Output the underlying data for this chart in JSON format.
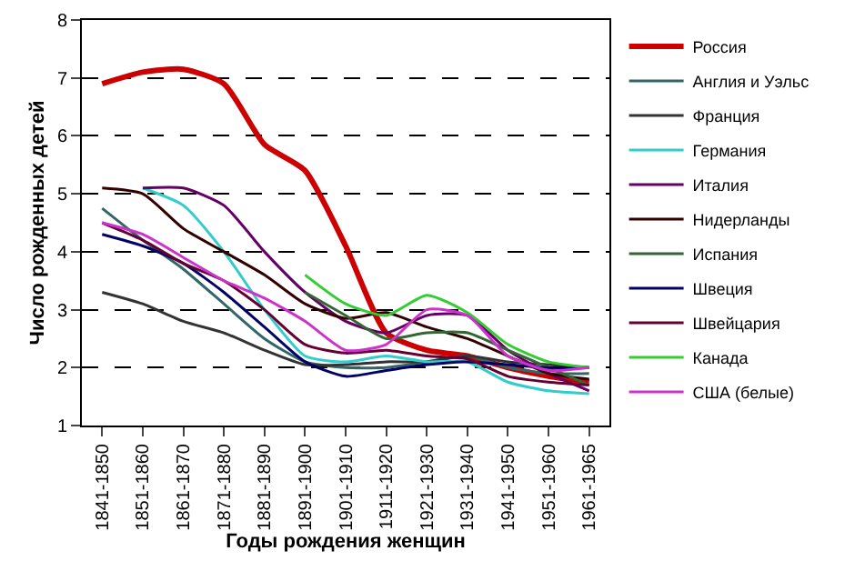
{
  "chart_data": {
    "type": "line",
    "xlabel": "Годы рождения женщин",
    "ylabel": "Число рожденных детей",
    "categories": [
      "1841-1850",
      "1851-1860",
      "1861-1870",
      "1871-1880",
      "1881-1890",
      "1891-1900",
      "1901-1910",
      "1911-1920",
      "1921-1930",
      "1931-1940",
      "1941-1950",
      "1951-1960",
      "1961-1965"
    ],
    "series": [
      {
        "name": "Россия",
        "color": "#cc0000",
        "values": [
          6.9,
          7.1,
          7.15,
          6.9,
          5.85,
          5.4,
          4.1,
          2.6,
          2.3,
          2.2,
          2.0,
          1.85,
          1.75
        ]
      },
      {
        "name": "Англия и Уэльс",
        "color": "#336666",
        "values": [
          4.75,
          4.2,
          3.7,
          3.1,
          2.5,
          2.1,
          2.0,
          2.0,
          2.1,
          2.2,
          2.0,
          1.9,
          1.9
        ]
      },
      {
        "name": "Франция",
        "color": "#333333",
        "values": [
          3.3,
          3.1,
          2.8,
          2.6,
          2.3,
          2.05,
          2.05,
          2.1,
          2.1,
          2.2,
          2.1,
          2.05,
          2.0
        ]
      },
      {
        "name": "Германия",
        "color": "#33cccc",
        "values": [
          null,
          5.1,
          4.8,
          4.0,
          3.0,
          2.2,
          2.1,
          2.2,
          2.1,
          2.1,
          1.75,
          1.6,
          1.55
        ]
      },
      {
        "name": "Италия",
        "color": "#660066",
        "values": [
          null,
          5.1,
          5.1,
          4.8,
          4.0,
          3.3,
          2.8,
          2.6,
          2.9,
          2.9,
          2.3,
          1.9,
          1.6
        ]
      },
      {
        "name": "Нидерланды",
        "color": "#330000",
        "values": [
          5.1,
          5.0,
          4.4,
          4.0,
          3.6,
          3.1,
          2.85,
          2.95,
          2.7,
          2.5,
          2.2,
          1.9,
          1.8
        ]
      },
      {
        "name": "Испания",
        "color": "#336633",
        "values": [
          null,
          null,
          null,
          null,
          null,
          3.3,
          2.9,
          2.5,
          2.6,
          2.6,
          2.3,
          2.0,
          1.7
        ]
      },
      {
        "name": "Швеция",
        "color": "#000066",
        "values": [
          4.3,
          4.1,
          3.8,
          3.3,
          2.7,
          2.1,
          1.85,
          1.95,
          2.05,
          2.1,
          2.05,
          2.0,
          2.0
        ]
      },
      {
        "name": "Швейцария",
        "color": "#660033",
        "values": [
          4.5,
          4.2,
          3.8,
          3.5,
          3.0,
          2.4,
          2.25,
          2.3,
          2.2,
          2.15,
          1.85,
          1.75,
          1.7
        ]
      },
      {
        "name": "Канада",
        "color": "#33cc33",
        "values": [
          null,
          null,
          null,
          null,
          null,
          3.6,
          3.1,
          2.9,
          3.25,
          2.95,
          2.4,
          2.1,
          2.0
        ]
      },
      {
        "name": "США (белые)",
        "color": "#cc33cc",
        "values": [
          4.5,
          4.3,
          3.9,
          3.5,
          3.2,
          2.8,
          2.3,
          2.4,
          3.0,
          2.9,
          2.2,
          1.95,
          2.0
        ]
      }
    ],
    "ylim": [
      1,
      8
    ],
    "yticks": [
      1,
      2,
      3,
      4,
      5,
      6,
      7,
      8
    ],
    "grid": "y",
    "legend": "right",
    "marker": "none",
    "line_style": "solid"
  }
}
